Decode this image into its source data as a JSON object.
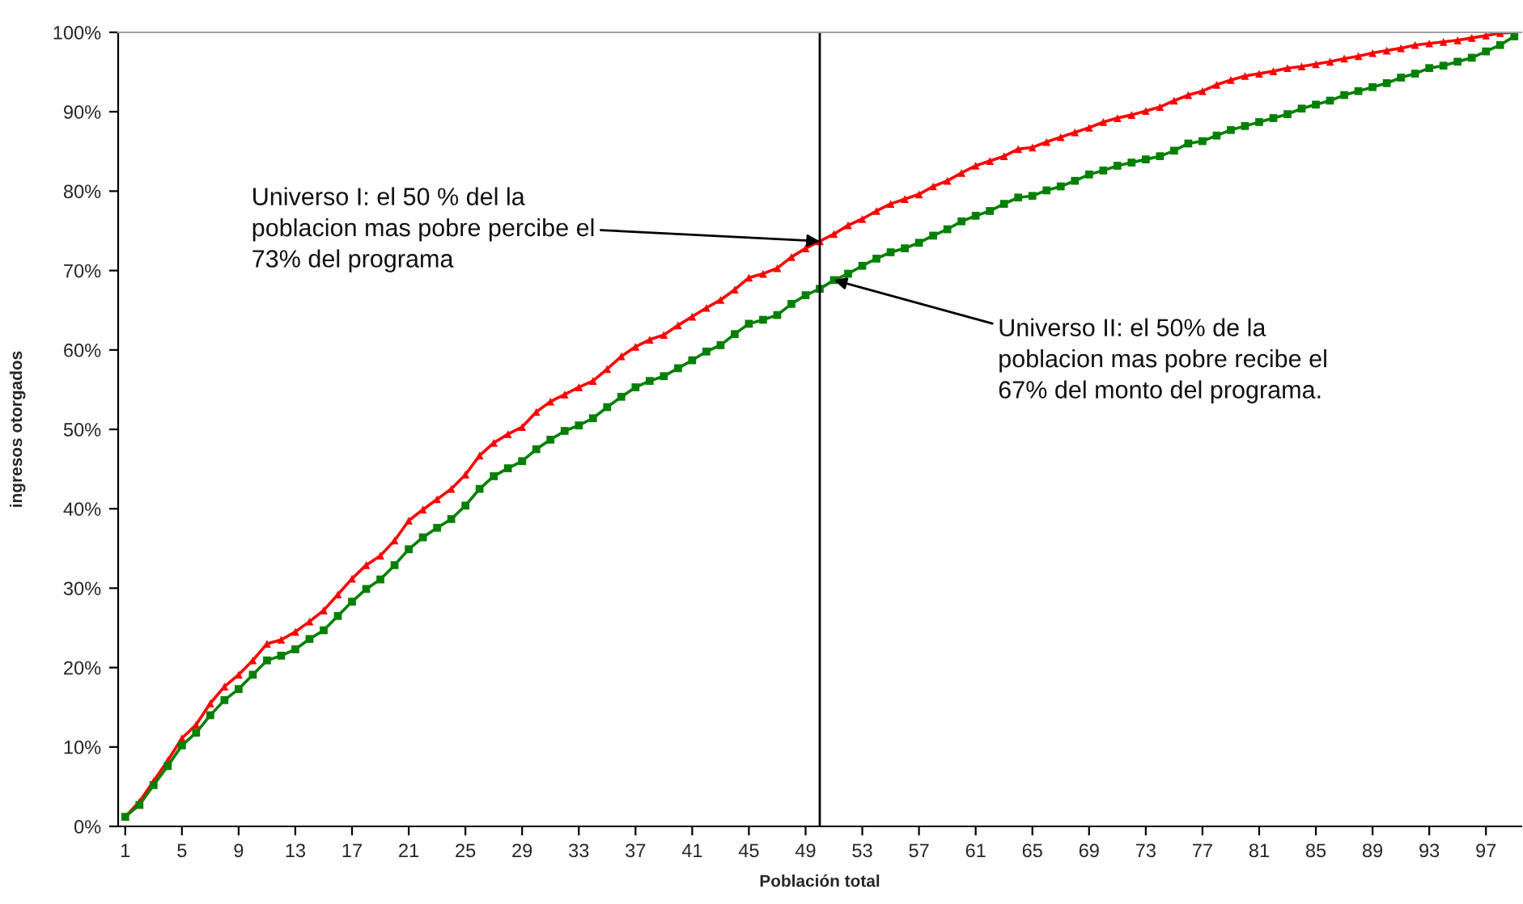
{
  "chart_data": {
    "type": "line",
    "xlabel": "Población total",
    "ylabel": "ingresos otorgados",
    "x": [
      1,
      2,
      3,
      4,
      5,
      6,
      7,
      8,
      9,
      10,
      11,
      12,
      13,
      14,
      15,
      16,
      17,
      18,
      19,
      20,
      21,
      22,
      23,
      24,
      25,
      26,
      27,
      28,
      29,
      30,
      31,
      32,
      33,
      34,
      35,
      36,
      37,
      38,
      39,
      40,
      41,
      42,
      43,
      44,
      45,
      46,
      47,
      48,
      49,
      50,
      51,
      52,
      53,
      54,
      55,
      56,
      57,
      58,
      59,
      60,
      61,
      62,
      63,
      64,
      65,
      66,
      67,
      68,
      69,
      70,
      71,
      72,
      73,
      74,
      75,
      76,
      77,
      78,
      79,
      80,
      81,
      82,
      83,
      84,
      85,
      86,
      87,
      88,
      89,
      90,
      91,
      92,
      93,
      94,
      95,
      96,
      97,
      98,
      99
    ],
    "series": [
      {
        "color": "#ff0000",
        "marker": "triangle",
        "values": [
          1.2,
          3.1,
          5.7,
          8.3,
          11.1,
          12.8,
          15.5,
          17.6,
          19.1,
          20.9,
          23.0,
          23.5,
          24.5,
          25.8,
          27.2,
          29.2,
          31.2,
          32.9,
          34.1,
          36.0,
          38.5,
          39.9,
          41.2,
          42.5,
          44.3,
          46.7,
          48.3,
          49.4,
          50.3,
          52.2,
          53.5,
          54.4,
          55.3,
          56.1,
          57.6,
          59.2,
          60.4,
          61.3,
          61.9,
          63.1,
          64.2,
          65.3,
          66.3,
          67.6,
          69.1,
          69.6,
          70.3,
          71.7,
          72.8,
          73.7,
          74.6,
          75.7,
          76.5,
          77.5,
          78.4,
          79.0,
          79.6,
          80.6,
          81.3,
          82.3,
          83.2,
          83.8,
          84.4,
          85.3,
          85.5,
          86.2,
          86.8,
          87.4,
          88.0,
          88.7,
          89.2,
          89.6,
          90.1,
          90.6,
          91.4,
          92.1,
          92.6,
          93.4,
          94.0,
          94.5,
          94.8,
          95.1,
          95.5,
          95.7,
          96.0,
          96.3,
          96.7,
          97.0,
          97.4,
          97.7,
          98.0,
          98.4,
          98.6,
          98.8,
          99.0,
          99.3,
          99.6,
          99.9,
          100
        ]
      },
      {
        "color": "#008000",
        "marker": "square",
        "values": [
          1.2,
          2.7,
          5.2,
          7.6,
          10.2,
          11.8,
          14.0,
          15.9,
          17.3,
          19.1,
          20.9,
          21.5,
          22.3,
          23.6,
          24.7,
          26.5,
          28.3,
          29.9,
          31.1,
          32.9,
          34.9,
          36.4,
          37.6,
          38.7,
          40.4,
          42.5,
          44.1,
          45.1,
          46.0,
          47.5,
          48.7,
          49.8,
          50.5,
          51.4,
          52.8,
          54.1,
          55.3,
          56.1,
          56.7,
          57.7,
          58.7,
          59.8,
          60.6,
          62.0,
          63.3,
          63.8,
          64.4,
          65.8,
          66.9,
          67.7,
          68.8,
          69.6,
          70.6,
          71.5,
          72.3,
          72.8,
          73.5,
          74.4,
          75.2,
          76.2,
          76.9,
          77.5,
          78.4,
          79.2,
          79.4,
          80.1,
          80.6,
          81.3,
          82.1,
          82.6,
          83.2,
          83.6,
          84.0,
          84.4,
          85.1,
          86.0,
          86.3,
          87.0,
          87.7,
          88.2,
          88.7,
          89.2,
          89.7,
          90.4,
          90.9,
          91.4,
          92.1,
          92.6,
          93.1,
          93.6,
          94.3,
          94.8,
          95.5,
          95.8,
          96.3,
          96.8,
          97.6,
          98.4,
          99.5
        ]
      }
    ],
    "xlim": [
      0.5,
      99.5
    ],
    "xticks": [
      1,
      5,
      9,
      13,
      17,
      21,
      25,
      29,
      33,
      37,
      41,
      45,
      49,
      53,
      57,
      61,
      65,
      69,
      73,
      77,
      81,
      85,
      89,
      93,
      97
    ],
    "ylim": [
      0,
      100
    ],
    "yticks": [
      {
        "value": 0,
        "label": "0%"
      },
      {
        "value": 10,
        "label": "10%"
      },
      {
        "value": 20,
        "label": "20%"
      },
      {
        "value": 30,
        "label": "30%"
      },
      {
        "value": 40,
        "label": "40%"
      },
      {
        "value": 50,
        "label": "50%"
      },
      {
        "value": 60,
        "label": "60%"
      },
      {
        "value": 70,
        "label": "70%"
      },
      {
        "value": 80,
        "label": "80%"
      },
      {
        "value": 90,
        "label": "90%"
      },
      {
        "value": 100,
        "label": "100%"
      }
    ],
    "ref_lines": [
      {
        "axis": "x",
        "value": 50,
        "color": "#000000"
      }
    ],
    "annotations": [
      {
        "text": "Universo I: el 50 % del la\npoblacion mas pobre percibe el\n73% del programa",
        "x": 50,
        "y": 73.7
      },
      {
        "text": "Universo II: el 50% de la\npoblacion mas pobre recibe el\n67% del monto del programa.",
        "x": 51,
        "y": 68.8
      }
    ],
    "grid": false,
    "legend": false,
    "line_style": "solid"
  }
}
